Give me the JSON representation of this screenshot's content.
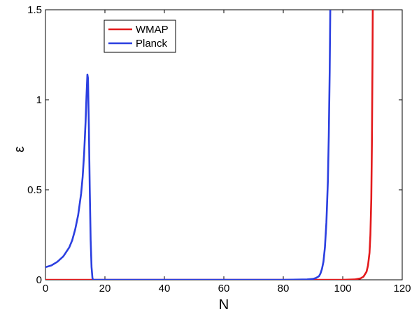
{
  "chart_data": {
    "type": "line",
    "title": "",
    "xlabel": "N",
    "ylabel": "ε",
    "xlim": [
      0,
      120
    ],
    "ylim": [
      0,
      1.5
    ],
    "xticks": [
      0,
      20,
      40,
      60,
      80,
      100,
      120
    ],
    "yticks": [
      0,
      0.5,
      1,
      1.5
    ],
    "xtick_labels": [
      "0",
      "20",
      "40",
      "60",
      "80",
      "100",
      "120"
    ],
    "ytick_labels": [
      "0",
      "0.5",
      "1",
      "1.5"
    ],
    "grid": false,
    "legend_position": "top-left",
    "series": [
      {
        "name": "WMAP",
        "color": "#e31a1c",
        "x": [
          0,
          20,
          40,
          60,
          80,
          100,
          104,
          106,
          107,
          108,
          108.5,
          109,
          109.3,
          109.6,
          109.8,
          110.0,
          110.1
        ],
        "y": [
          0,
          0,
          0,
          0,
          0,
          0,
          0.002,
          0.008,
          0.018,
          0.045,
          0.08,
          0.15,
          0.25,
          0.45,
          0.75,
          1.2,
          1.5
        ]
      },
      {
        "name": "Planck",
        "color": "#2b3fe0",
        "x": [
          0,
          2,
          4,
          6,
          8,
          9,
          10,
          11,
          12,
          12.5,
          13,
          13.5,
          13.8,
          14.1,
          14.3,
          14.6,
          14.9,
          15.2,
          15.5,
          15.8,
          16,
          20,
          40,
          60,
          80,
          88,
          90,
          91,
          92,
          92.5,
          93,
          93.5,
          94,
          94.5,
          95,
          95.3,
          95.6,
          95.8
        ],
        "y": [
          0.07,
          0.08,
          0.1,
          0.13,
          0.18,
          0.22,
          0.28,
          0.36,
          0.48,
          0.57,
          0.7,
          0.88,
          1.02,
          1.14,
          1.12,
          0.85,
          0.5,
          0.22,
          0.07,
          0.01,
          0,
          0,
          0,
          0,
          0,
          0.002,
          0.005,
          0.01,
          0.02,
          0.035,
          0.06,
          0.1,
          0.18,
          0.32,
          0.55,
          0.8,
          1.15,
          1.5
        ]
      }
    ]
  }
}
